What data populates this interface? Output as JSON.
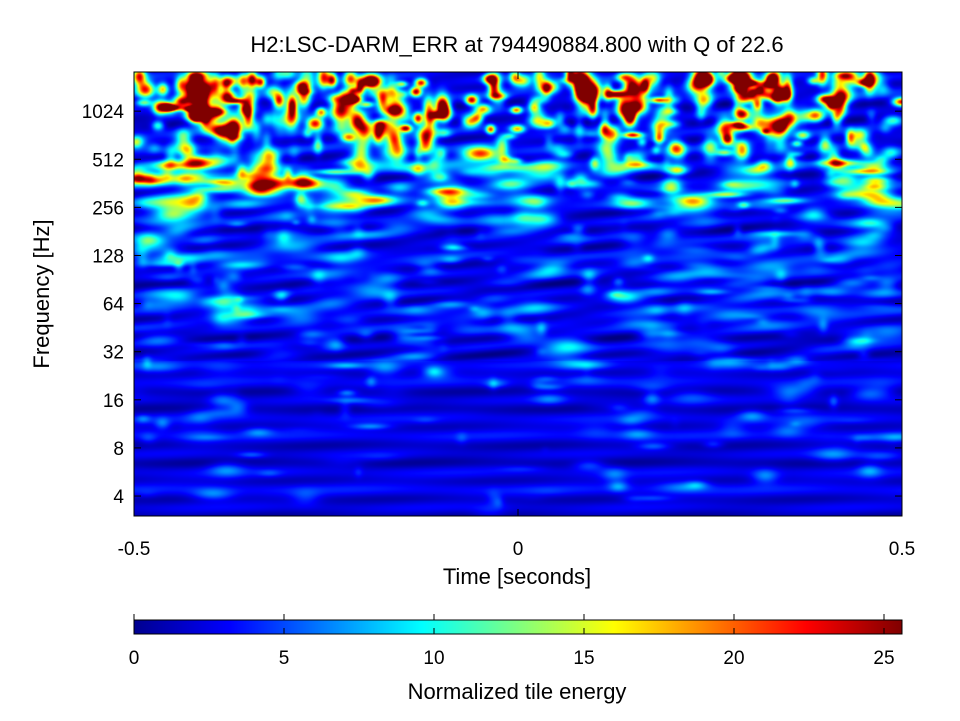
{
  "chart_data": {
    "type": "heatmap",
    "title": "H2:LSC-DARM_ERR at 794490884.800 with Q of 22.6",
    "xlabel": "Time [seconds]",
    "ylabel": "Frequency [Hz]",
    "xlim": [
      -0.5,
      0.5
    ],
    "ylim": [
      3,
      1800
    ],
    "y_scale": "log2",
    "x_ticks": [
      {
        "value": -0.5,
        "label": "-0.5"
      },
      {
        "value": 0,
        "label": "0"
      },
      {
        "value": 0.5,
        "label": "0.5"
      }
    ],
    "y_ticks": [
      {
        "value": 4,
        "label": "4"
      },
      {
        "value": 8,
        "label": "8"
      },
      {
        "value": 16,
        "label": "16"
      },
      {
        "value": 32,
        "label": "32"
      },
      {
        "value": 64,
        "label": "64"
      },
      {
        "value": 128,
        "label": "128"
      },
      {
        "value": 256,
        "label": "256"
      },
      {
        "value": 512,
        "label": "512"
      },
      {
        "value": 1024,
        "label": "1024"
      }
    ],
    "colorbar": {
      "label": "Normalized tile energy",
      "colormap": "jet",
      "range": [
        0,
        25.6
      ],
      "ticks": [
        {
          "value": 0,
          "label": "0"
        },
        {
          "value": 5,
          "label": "5"
        },
        {
          "value": 10,
          "label": "10"
        },
        {
          "value": 15,
          "label": "15"
        },
        {
          "value": 20,
          "label": "20"
        },
        {
          "value": 25,
          "label": "25"
        }
      ]
    },
    "notable_features": [
      {
        "t": -0.44,
        "f": 70,
        "energy": 6
      },
      {
        "t": 0.14,
        "f": 70,
        "energy": 7
      },
      {
        "t": 0.03,
        "f": 215,
        "energy": 9
      },
      {
        "t": -0.05,
        "f": 560,
        "energy": 19
      },
      {
        "t": -0.33,
        "f": 440,
        "energy": 13
      },
      {
        "t": -0.45,
        "f": 230,
        "energy": 9
      },
      {
        "t": -0.48,
        "f": 160,
        "energy": 9
      }
    ]
  }
}
